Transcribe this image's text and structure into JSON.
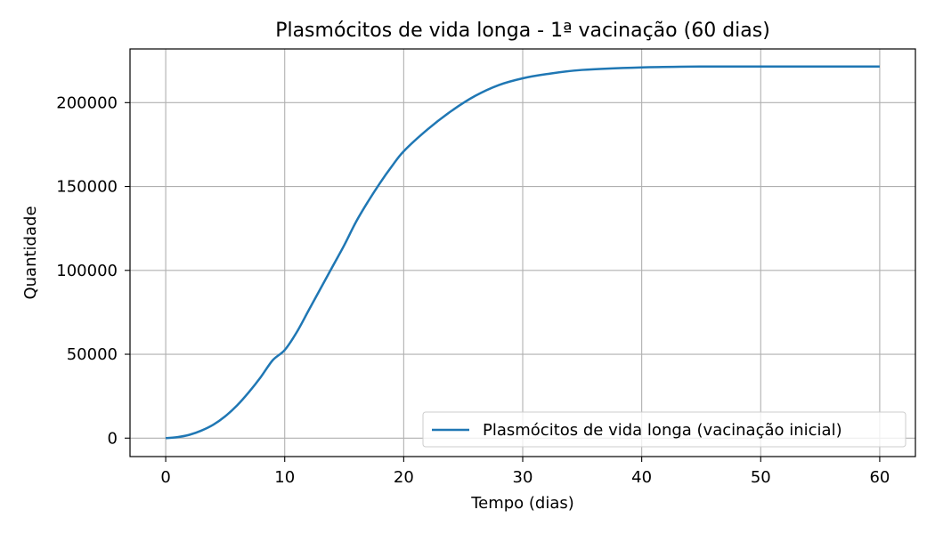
{
  "chart_data": {
    "type": "line",
    "title": "Plasmócitos de vida longa - 1ª vacinação (60 dias)",
    "xlabel": "Tempo (dias)",
    "ylabel": "Quantidade",
    "xlim": [
      -3,
      63
    ],
    "ylim": [
      -11000,
      232000
    ],
    "xticks": [
      0,
      10,
      20,
      30,
      40,
      50,
      60
    ],
    "yticks": [
      0,
      50000,
      100000,
      150000,
      200000
    ],
    "grid": true,
    "legend_position": "lower-right",
    "series": [
      {
        "name": "Plasmócitos de vida longa (vacinação inicial)",
        "color": "#1f77b4",
        "x": [
          0,
          1,
          2,
          3,
          4,
          5,
          6,
          7,
          8,
          9,
          10,
          11,
          12,
          13,
          14,
          15,
          16,
          17,
          18,
          19,
          20,
          22,
          24,
          26,
          28,
          30,
          32,
          35,
          40,
          45,
          50,
          55,
          60
        ],
        "y": [
          0,
          600,
          2000,
          4500,
          8000,
          13000,
          19500,
          27500,
          36500,
          46500,
          52500,
          63000,
          76000,
          89000,
          102000,
          115000,
          129000,
          141000,
          152000,
          162000,
          171000,
          184000,
          195000,
          204000,
          210500,
          214500,
          217000,
          219500,
          221000,
          221500,
          221500,
          221500,
          221500
        ]
      }
    ]
  }
}
